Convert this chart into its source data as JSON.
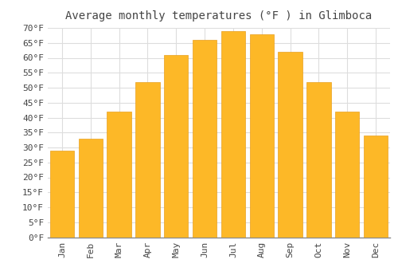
{
  "title": "Average monthly temperatures (°F ) in Glimboca",
  "months": [
    "Jan",
    "Feb",
    "Mar",
    "Apr",
    "May",
    "Jun",
    "Jul",
    "Aug",
    "Sep",
    "Oct",
    "Nov",
    "Dec"
  ],
  "values": [
    29,
    33,
    42,
    52,
    61,
    66,
    69,
    68,
    62,
    52,
    42,
    34
  ],
  "bar_color": "#FDB827",
  "bar_edge_color": "#E8A020",
  "background_color": "#FFFFFF",
  "grid_color": "#DDDDDD",
  "text_color": "#444444",
  "ylim": [
    0,
    70
  ],
  "ytick_step": 5,
  "title_fontsize": 10,
  "tick_fontsize": 8,
  "font_family": "monospace"
}
